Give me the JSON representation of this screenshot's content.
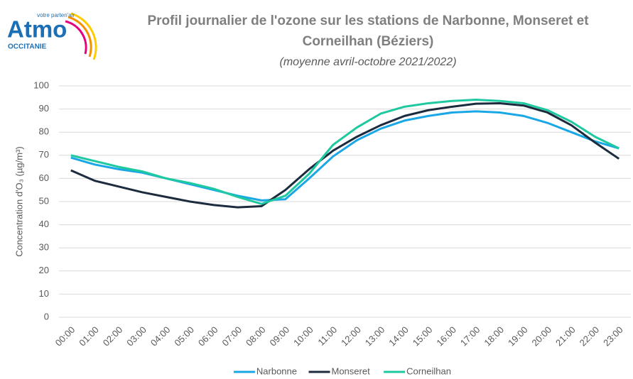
{
  "logo": {
    "brand": "Atmo",
    "tagline": "votre parten'air",
    "region": "OCCITANIE"
  },
  "chart_data": {
    "type": "line",
    "title": [
      "Profil journalier de l'ozone sur les stations de Narbonne, Monseret et",
      "Corneilhan (Béziers)"
    ],
    "subtitle": "(moyenne avril-octobre 2021/2022)",
    "y_label": "Concentration d'O₃ (µg/m³)",
    "categories": [
      "00:00",
      "01:00",
      "02:00",
      "03:00",
      "04:00",
      "05:00",
      "06:00",
      "07:00",
      "08:00",
      "09:00",
      "10:00",
      "11:00",
      "12:00",
      "13:00",
      "14:00",
      "15:00",
      "16:00",
      "17:00",
      "18:00",
      "19:00",
      "20:00",
      "21:00",
      "22:00",
      "23:00"
    ],
    "series": [
      {
        "name": "Narbonne",
        "color": "#1aa7e6",
        "values": [
          69,
          66,
          64,
          62.5,
          60,
          57.5,
          55,
          52.5,
          50.5,
          51,
          60,
          69.5,
          76.5,
          81.5,
          85,
          87,
          88.5,
          89,
          88.5,
          87,
          84,
          80,
          76,
          73
        ]
      },
      {
        "name": "Monseret",
        "color": "#1c2b3e",
        "values": [
          63.5,
          59,
          56.5,
          54,
          52,
          50,
          48.5,
          47.5,
          48,
          55,
          64,
          72,
          78,
          83,
          87,
          89.5,
          91,
          92.3,
          92.5,
          91.5,
          88.5,
          83,
          75.5,
          68.5
        ]
      },
      {
        "name": "Corneilhan",
        "color": "#1ec9a0",
        "values": [
          70,
          67.5,
          65,
          63,
          60,
          58,
          55.5,
          52,
          49,
          52.5,
          62,
          74.5,
          82,
          88,
          91,
          92.5,
          93.5,
          94,
          93.5,
          92.5,
          89.5,
          84.5,
          78,
          73
        ]
      }
    ],
    "ylim": [
      0,
      100
    ],
    "yticks": [
      0,
      10,
      20,
      30,
      40,
      50,
      60,
      70,
      80,
      90,
      100
    ],
    "grid": true,
    "legend": "bottom"
  }
}
